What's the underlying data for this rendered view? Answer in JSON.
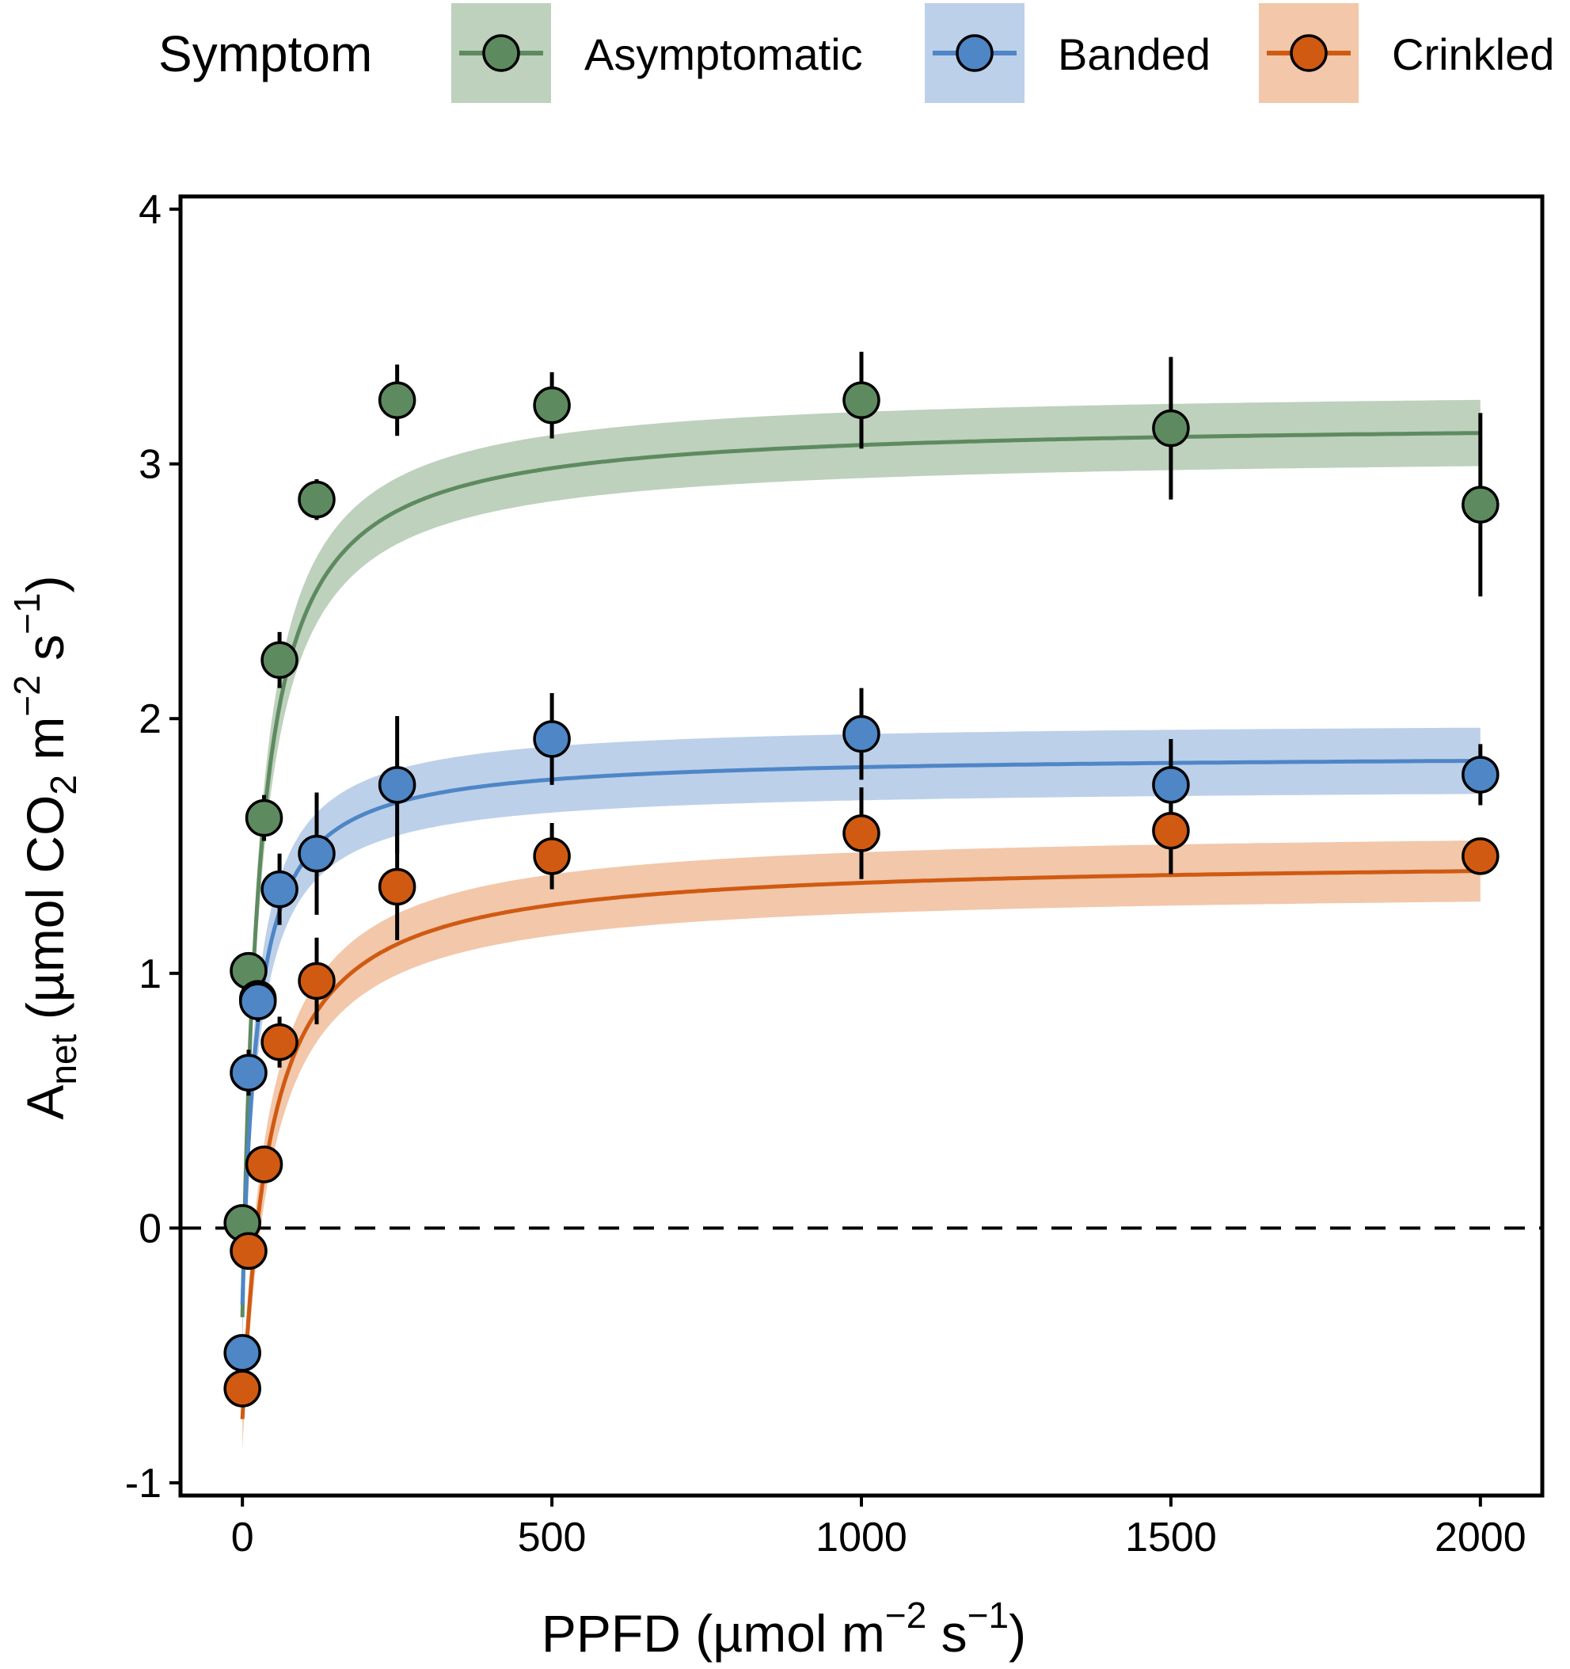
{
  "chart_data": {
    "type": "scatter",
    "legend": {
      "title": "Symptom",
      "placement": "top"
    },
    "x_axis": {
      "label": "PPFD (µmol m−2 s−1)",
      "label_main": "PPFD (µmol m",
      "label_sup1": "−2",
      "label_mid": " s",
      "label_sup2": "−1",
      "label_end": ")",
      "range": [
        -100,
        2100
      ],
      "ticks": [
        0,
        500,
        1000,
        1500,
        2000
      ],
      "tick_labels": [
        "0",
        "500",
        "1000",
        "1500",
        "2000"
      ]
    },
    "y_axis": {
      "label": "Anet (µmol CO2 m−2 s−1)",
      "label_A": "A",
      "label_sub_net": "net",
      "label_mid": " (µmol CO",
      "label_sub_2": "2",
      "label_m": " m",
      "label_sup1": "−2",
      "label_s": " s",
      "label_sup2": "−1",
      "label_end": ")",
      "range": [
        -1.05,
        4.05
      ],
      "ticks": [
        -1,
        0,
        1,
        2,
        3,
        4
      ],
      "tick_labels": [
        "-1",
        "0",
        "1",
        "2",
        "3",
        "4"
      ]
    },
    "reference_line": {
      "y": 0,
      "style": "dashed"
    },
    "series": [
      {
        "name": "Asymptomatic",
        "color": "#5E8A60",
        "band_color": "#A7C1A6",
        "x": [
          0,
          10,
          25,
          35,
          60,
          120,
          250,
          500,
          1000,
          1500,
          2000
        ],
        "y": [
          0.02,
          1.01,
          0.9,
          1.61,
          2.23,
          2.86,
          3.25,
          3.23,
          3.25,
          3.14,
          2.84
        ],
        "err": [
          0.05,
          0.07,
          0.08,
          0.09,
          0.11,
          0.08,
          0.14,
          0.13,
          0.19,
          0.28,
          0.36
        ],
        "fit": {
          "Amax": 3.17,
          "Rd": -0.35,
          "k": 28
        },
        "band_halfwidth": 0.13
      },
      {
        "name": "Banded",
        "color": "#4E86C6",
        "band_color": "#A5C0E3",
        "x": [
          0,
          10,
          25,
          60,
          120,
          250,
          500,
          1000,
          1500,
          2000
        ],
        "y": [
          -0.49,
          0.61,
          0.89,
          1.33,
          1.47,
          1.74,
          1.92,
          1.94,
          1.74,
          1.78
        ],
        "err": [
          0.06,
          0.09,
          0.08,
          0.14,
          0.24,
          0.27,
          0.18,
          0.18,
          0.18,
          0.12
        ],
        "fit": {
          "Amax": 1.86,
          "Rd": -0.3,
          "k": 24
        },
        "band_halfwidth": 0.13
      },
      {
        "name": "Crinkled",
        "color": "#D05A12",
        "band_color": "#EDB48E",
        "x": [
          0,
          10,
          35,
          60,
          120,
          250,
          500,
          1000,
          1500,
          2000
        ],
        "y": [
          -0.63,
          -0.09,
          0.25,
          0.73,
          0.97,
          1.34,
          1.46,
          1.55,
          1.56,
          1.46
        ],
        "err": [
          0.06,
          0.06,
          0.06,
          0.1,
          0.17,
          0.21,
          0.13,
          0.18,
          0.17,
          0.06
        ],
        "fit": {
          "Amax": 1.45,
          "Rd": -0.75,
          "k": 45
        },
        "band_halfwidth": 0.12
      }
    ]
  }
}
